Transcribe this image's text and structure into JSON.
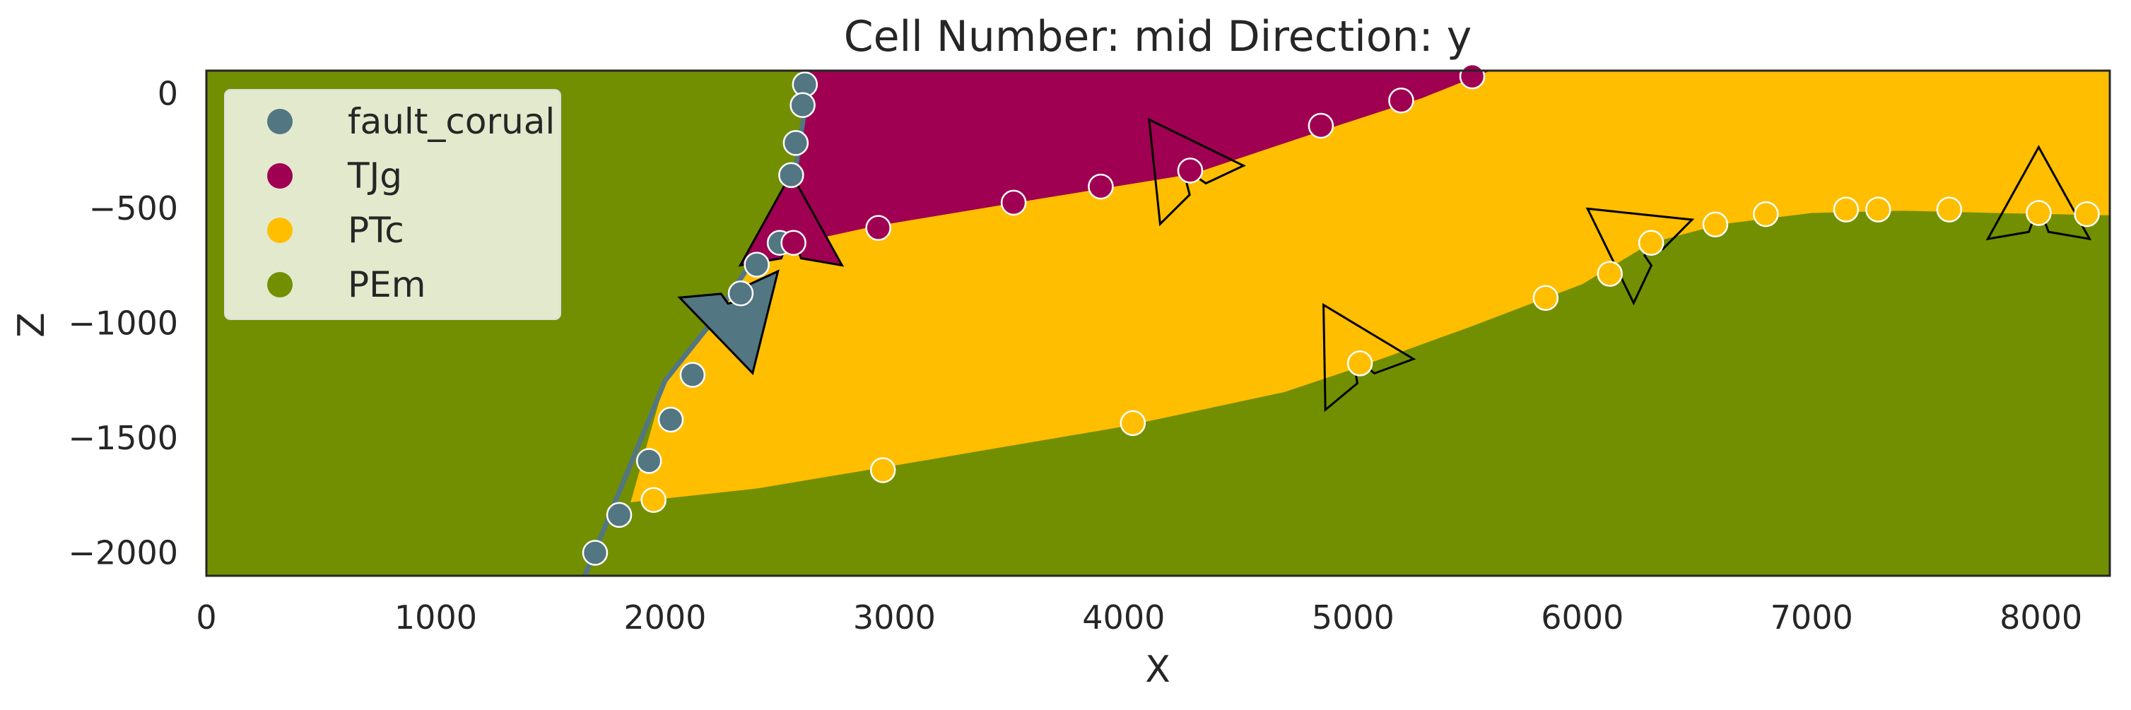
{
  "chart_data": {
    "type": "scatter",
    "title": "Cell Number: mid Direction: y",
    "xlabel": "X",
    "ylabel": "Z",
    "xlim": [
      0,
      8300
    ],
    "ylim": [
      -2100,
      100
    ],
    "xticks": [
      0,
      1000,
      2000,
      3000,
      4000,
      5000,
      6000,
      7000,
      8000
    ],
    "yticks": [
      0,
      -500,
      -1000,
      -1500,
      -2000
    ],
    "grid": false,
    "legend_position": "top-left",
    "colors": {
      "fault_corual": "#527682",
      "TJg": "#9f0052",
      "PTc": "#ffbe00",
      "PEm": "#728f02"
    },
    "legend": [
      "fault_corual",
      "TJg",
      "PTc",
      "PEm"
    ],
    "boundaries": {
      "fault_line": [
        [
          1650,
          -2100
        ],
        [
          2000,
          -1250
        ],
        [
          2200,
          -1000
        ],
        [
          2400,
          -700
        ],
        [
          2550,
          -450
        ],
        [
          2620,
          0
        ],
        [
          2620,
          100
        ]
      ],
      "tjg_base": [
        [
          2580,
          -650
        ],
        [
          2900,
          -580
        ],
        [
          3500,
          -480
        ],
        [
          4300,
          -350
        ],
        [
          4900,
          -150
        ],
        [
          5300,
          -20
        ],
        [
          5600,
          100
        ]
      ],
      "ptc_base": [
        [
          1850,
          -1780
        ],
        [
          2400,
          -1720
        ],
        [
          3000,
          -1620
        ],
        [
          4000,
          -1450
        ],
        [
          4700,
          -1300
        ],
        [
          5000,
          -1200
        ],
        [
          5500,
          -1020
        ],
        [
          6000,
          -830
        ],
        [
          6300,
          -650
        ],
        [
          6600,
          -570
        ],
        [
          7000,
          -520
        ],
        [
          7400,
          -510
        ],
        [
          7800,
          -520
        ],
        [
          8300,
          -530
        ]
      ]
    },
    "series": [
      {
        "name": "fault_corual",
        "points": [
          [
            2610,
            40
          ],
          [
            2600,
            -50
          ],
          [
            2570,
            -215
          ],
          [
            2550,
            -355
          ],
          [
            2500,
            -650
          ],
          [
            2400,
            -745
          ],
          [
            2330,
            -870
          ],
          [
            2120,
            -1225
          ],
          [
            2025,
            -1420
          ],
          [
            1930,
            -1600
          ],
          [
            1800,
            -1835
          ],
          [
            1695,
            -2000
          ]
        ]
      },
      {
        "name": "TJg",
        "points": [
          [
            2560,
            -650
          ],
          [
            2930,
            -585
          ],
          [
            3520,
            -475
          ],
          [
            3900,
            -405
          ],
          [
            4290,
            -335
          ],
          [
            4860,
            -140
          ],
          [
            5210,
            -30
          ],
          [
            5520,
            75
          ]
        ]
      },
      {
        "name": "PTc",
        "points": [
          [
            1950,
            -1770
          ],
          [
            2950,
            -1640
          ],
          [
            4040,
            -1435
          ],
          [
            5030,
            -1175
          ],
          [
            5840,
            -890
          ],
          [
            6120,
            -785
          ],
          [
            6300,
            -650
          ],
          [
            6580,
            -570
          ],
          [
            6800,
            -525
          ],
          [
            7150,
            -505
          ],
          [
            7290,
            -505
          ],
          [
            7600,
            -505
          ],
          [
            7990,
            -520
          ],
          [
            8200,
            -525
          ]
        ]
      }
    ],
    "orientations": [
      {
        "x": 2310,
        "y": -950,
        "dir": 165,
        "color": "#527682"
      },
      {
        "x": 2550,
        "y": -625,
        "dir": 0,
        "color": "#9f0052"
      },
      {
        "x": 4270,
        "y": -340,
        "dir": -35,
        "color": "none"
      },
      {
        "x": 5010,
        "y": -1160,
        "dir": -30,
        "color": "none"
      },
      {
        "x": 6250,
        "y": -660,
        "dir": -55,
        "color": "none"
      },
      {
        "x": 7990,
        "y": -510,
        "dir": 0,
        "color": "none"
      }
    ]
  }
}
